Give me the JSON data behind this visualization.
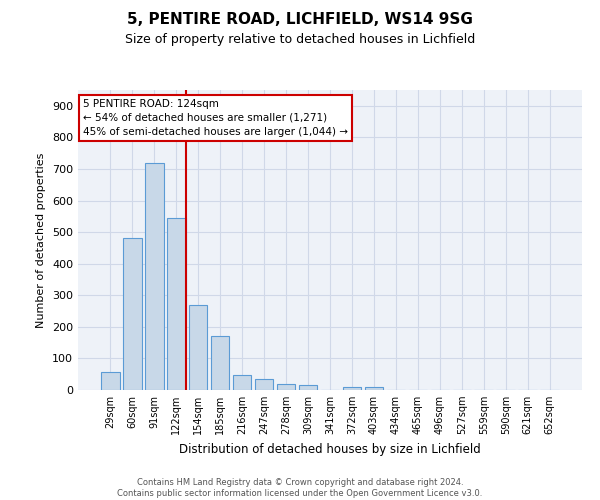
{
  "title1": "5, PENTIRE ROAD, LICHFIELD, WS14 9SG",
  "title2": "Size of property relative to detached houses in Lichfield",
  "xlabel": "Distribution of detached houses by size in Lichfield",
  "ylabel": "Number of detached properties",
  "footnote": "Contains HM Land Registry data © Crown copyright and database right 2024.\nContains public sector information licensed under the Open Government Licence v3.0.",
  "bar_labels": [
    "29sqm",
    "60sqm",
    "91sqm",
    "122sqm",
    "154sqm",
    "185sqm",
    "216sqm",
    "247sqm",
    "278sqm",
    "309sqm",
    "341sqm",
    "372sqm",
    "403sqm",
    "434sqm",
    "465sqm",
    "496sqm",
    "527sqm",
    "559sqm",
    "590sqm",
    "621sqm",
    "652sqm"
  ],
  "bar_values": [
    57,
    480,
    720,
    545,
    270,
    170,
    46,
    35,
    18,
    15,
    0,
    8,
    8,
    0,
    0,
    0,
    0,
    0,
    0,
    0,
    0
  ],
  "bar_color": "#c8d8e8",
  "bar_edge_color": "#5b9bd5",
  "grid_color": "#d0d8e8",
  "background_color": "#eef2f8",
  "property_line_color": "#cc0000",
  "annotation_text": "5 PENTIRE ROAD: 124sqm\n← 54% of detached houses are smaller (1,271)\n45% of semi-detached houses are larger (1,044) →",
  "annotation_box_color": "#ffffff",
  "annotation_box_edge": "#cc0000",
  "ylim": [
    0,
    950
  ],
  "yticks": [
    0,
    100,
    200,
    300,
    400,
    500,
    600,
    700,
    800,
    900
  ],
  "title1_fontsize": 11,
  "title2_fontsize": 9
}
